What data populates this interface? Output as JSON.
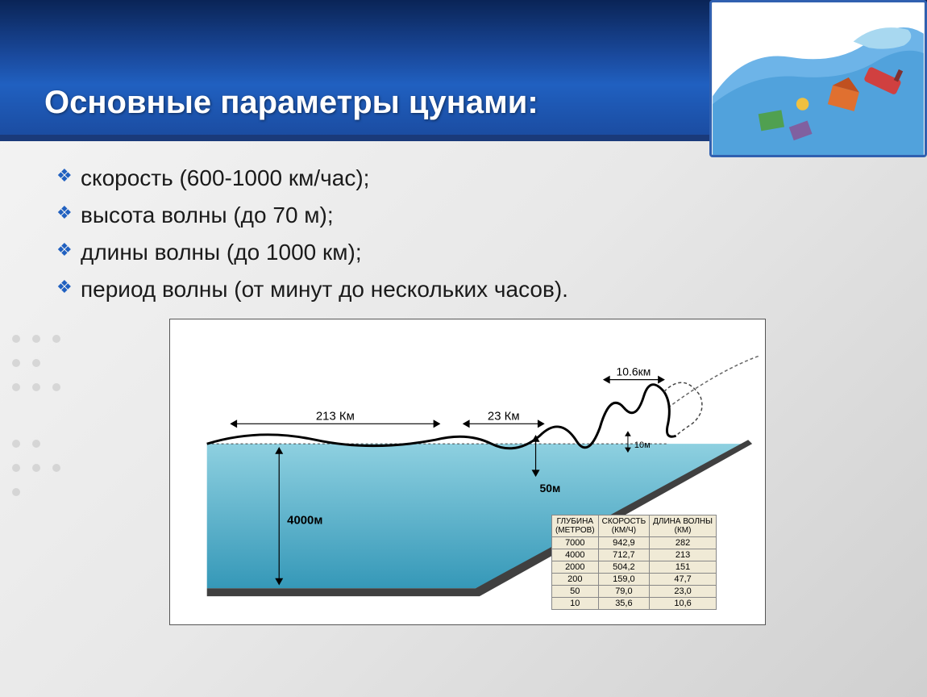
{
  "title": "Основные параметры цунами:",
  "bullets": [
    "скорость (600-1000 км/час);",
    "высота волны (до 70 м);",
    "длины волны (до 1000 км);",
    "период волны (от минут до нескольких часов)."
  ],
  "diagram": {
    "type": "infographic",
    "background_color": "#ffffff",
    "water_gradient_top": "#8ed0e0",
    "water_gradient_bottom": "#2090b0",
    "seafloor_color": "#404040",
    "wave_line_color": "#000000",
    "wave_line_width": 3,
    "dimension_text_color": "#000000",
    "dimension_fontsize": 13,
    "labels": {
      "wl_213": "213 Км",
      "wl_23": "23 Км",
      "wl_106": "10.6км",
      "h_50": "50м",
      "h_10": "10м",
      "depth_4000": "4000м"
    },
    "table": {
      "columns": [
        "ГЛУБИНА\n(МЕТРОВ)",
        "СКОРОСТЬ\n(КМ/Ч)",
        "ДЛИНА ВОЛНЫ\n(КМ)"
      ],
      "rows": [
        [
          "7000",
          "942,9",
          "282"
        ],
        [
          "4000",
          "712,7",
          "213"
        ],
        [
          "2000",
          "504,2",
          "151"
        ],
        [
          "200",
          "159,0",
          "47,7"
        ],
        [
          "50",
          "79,0",
          "23,0"
        ],
        [
          "10",
          "35,6",
          "10,6"
        ]
      ],
      "bg_color": "#f0ead6",
      "border_color": "#888888",
      "fontsize": 11,
      "header_fontsize": 10
    }
  },
  "header": {
    "bg_gradient_top": "#0a2456",
    "bg_gradient_mid": "#2060c0",
    "title_color": "#ffffff",
    "title_fontsize": 40
  }
}
